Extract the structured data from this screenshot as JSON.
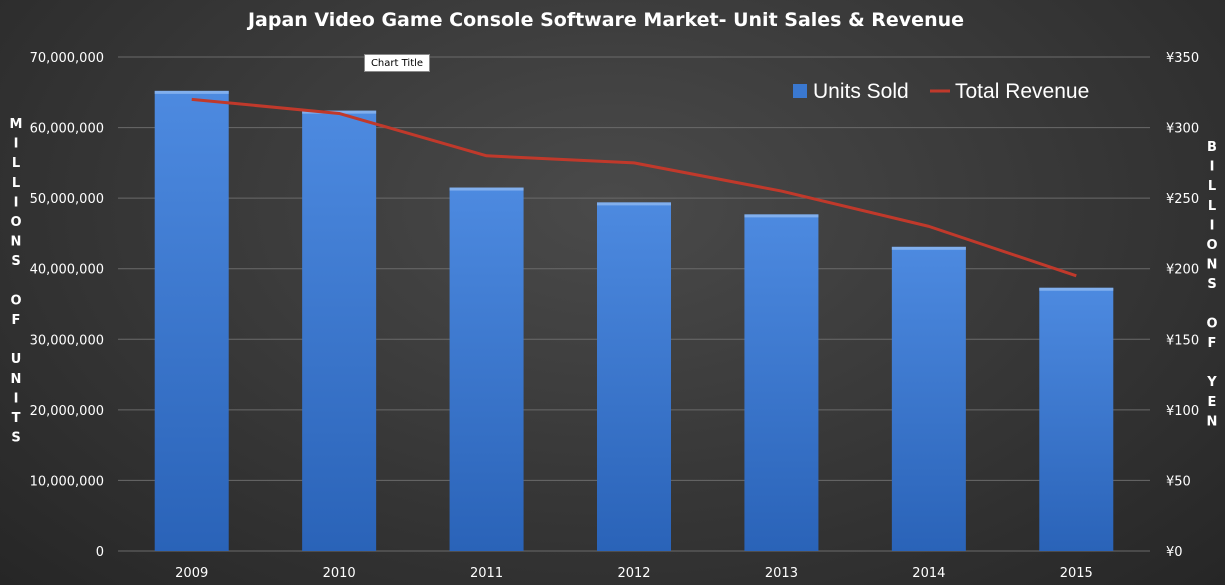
{
  "chart_data": {
    "type": "bar",
    "title": "Japan Video Game Console Software Market- Unit Sales & Revenue",
    "categories": [
      "2009",
      "2010",
      "2011",
      "2012",
      "2013",
      "2014",
      "2015"
    ],
    "series": [
      {
        "name": "Units Sold",
        "type": "bar",
        "axis": "left",
        "color": "#3a78d0",
        "values": [
          65200000,
          62400000,
          51500000,
          49400000,
          47700000,
          43100000,
          37300000
        ]
      },
      {
        "name": "Total Revenue",
        "type": "line",
        "axis": "right",
        "color": "#c0392b",
        "values": [
          320,
          310,
          280,
          275,
          255,
          230,
          195
        ]
      }
    ],
    "y_left": {
      "title": "MILLIONS OF UNITS",
      "ylim": [
        0,
        70000000
      ],
      "ticks": [
        "0",
        "10,000,000",
        "20,000,000",
        "30,000,000",
        "40,000,000",
        "50,000,000",
        "60,000,000",
        "70,000,000"
      ]
    },
    "y_right": {
      "title": "BILLIONS OF YEN",
      "ylim": [
        0,
        350
      ],
      "ticks": [
        "¥0",
        "¥50",
        "¥100",
        "¥150",
        "¥200",
        "¥250",
        "¥300",
        "¥350"
      ]
    },
    "grid": true,
    "legend_position": "top-right",
    "tooltip": "Chart Title"
  }
}
